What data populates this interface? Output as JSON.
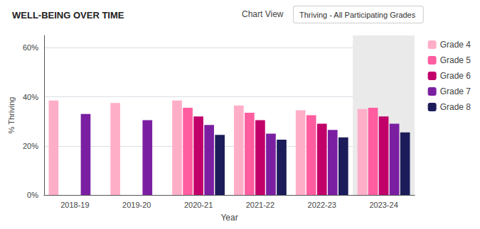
{
  "chart_data": {
    "type": "bar",
    "title": "WELL-BEING OVER TIME",
    "annotations": [
      "Chart View",
      "Thriving - All Participating Grades"
    ],
    "xlabel": "Year",
    "ylabel": "% Thriving",
    "categories": [
      "2018-19",
      "2019-20",
      "2020-21",
      "2021-22",
      "2022-23",
      "2023-24"
    ],
    "series": [
      {
        "name": "Grade 4",
        "color": "#FFAEC8",
        "values": [
          38.5,
          37.5,
          38.5,
          36.5,
          34.5,
          35.0
        ]
      },
      {
        "name": "Grade 5",
        "color": "#FF5DA0",
        "values": [
          null,
          null,
          35.5,
          33.5,
          32.5,
          35.5
        ]
      },
      {
        "name": "Grade 6",
        "color": "#C2006A",
        "values": [
          null,
          null,
          32.0,
          30.5,
          29.0,
          32.0
        ]
      },
      {
        "name": "Grade 7",
        "color": "#7B1FA2",
        "values": [
          33.0,
          30.5,
          28.5,
          25.0,
          26.5,
          29.0
        ]
      },
      {
        "name": "Grade 8",
        "color": "#1C1C5A",
        "values": [
          null,
          null,
          24.5,
          22.5,
          23.5,
          25.5
        ]
      }
    ],
    "ylim": [
      0,
      65
    ],
    "yticks": [
      {
        "value": 0,
        "label": "0%"
      },
      {
        "value": 20,
        "label": "20%"
      },
      {
        "value": 40,
        "label": "40%"
      },
      {
        "value": 60,
        "label": "60%"
      }
    ],
    "grid": true,
    "legend": "right"
  }
}
